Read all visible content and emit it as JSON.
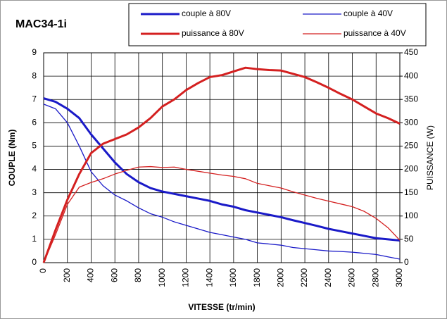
{
  "chart_data": {
    "type": "line",
    "title": "MAC34-1i",
    "xlabel": "VITESSE (tr/min)",
    "ylabel": "COUPLE (Nm)",
    "y2label": "PUISSANCE (W)",
    "x": [
      0,
      100,
      200,
      300,
      400,
      500,
      600,
      700,
      800,
      900,
      1000,
      1100,
      1200,
      1300,
      1400,
      1500,
      1600,
      1700,
      1800,
      1900,
      2000,
      2100,
      2200,
      2300,
      2400,
      2500,
      2600,
      2700,
      2800,
      2900,
      3000
    ],
    "series": [
      {
        "name": "couple à 80V",
        "color": "#1a1ac8",
        "width": 3,
        "axis": "y",
        "values": [
          7.05,
          6.9,
          6.6,
          6.2,
          5.5,
          4.9,
          4.3,
          3.8,
          3.45,
          3.2,
          3.05,
          2.95,
          2.85,
          2.75,
          2.65,
          2.5,
          2.4,
          2.25,
          2.15,
          2.05,
          1.95,
          1.82,
          1.7,
          1.58,
          1.45,
          1.35,
          1.25,
          1.15,
          1.05,
          1.0,
          0.95
        ]
      },
      {
        "name": "couple à 40V",
        "color": "#1a1ac8",
        "width": 1.3,
        "axis": "y",
        "values": [
          6.8,
          6.6,
          6.0,
          5.0,
          3.9,
          3.3,
          2.9,
          2.65,
          2.35,
          2.1,
          1.95,
          1.75,
          1.6,
          1.45,
          1.3,
          1.2,
          1.1,
          1.0,
          0.85,
          0.8,
          0.75,
          0.65,
          0.6,
          0.55,
          0.5,
          0.48,
          0.45,
          0.4,
          0.35,
          0.25,
          0.15
        ]
      },
      {
        "name": "puissance à 80V",
        "color": "#d42020",
        "width": 3,
        "axis": "y2",
        "values": [
          0,
          70,
          135,
          190,
          235,
          255,
          265,
          275,
          290,
          310,
          335,
          350,
          370,
          385,
          398,
          402,
          410,
          418,
          415,
          413,
          412,
          405,
          398,
          387,
          375,
          362,
          350,
          335,
          320,
          310,
          298
        ]
      },
      {
        "name": "puissance à 40V",
        "color": "#d42020",
        "width": 1.3,
        "axis": "y2",
        "values": [
          0,
          60,
          125,
          162,
          172,
          180,
          190,
          198,
          205,
          206,
          204,
          205,
          200,
          196,
          192,
          188,
          185,
          180,
          170,
          165,
          160,
          152,
          145,
          138,
          132,
          126,
          120,
          110,
          95,
          75,
          48
        ]
      }
    ],
    "xlim": [
      0,
      3000
    ],
    "xticks": [
      0,
      200,
      400,
      600,
      800,
      1000,
      1200,
      1400,
      1600,
      1800,
      2000,
      2200,
      2400,
      2600,
      2800,
      3000
    ],
    "ylim": [
      0,
      9
    ],
    "yticks": [
      0,
      1,
      2,
      3,
      4,
      5,
      6,
      7,
      8,
      9
    ],
    "y2lim": [
      0,
      450
    ],
    "y2ticks": [
      0,
      50,
      100,
      150,
      200,
      250,
      300,
      350,
      400,
      450
    ],
    "grid": true
  }
}
